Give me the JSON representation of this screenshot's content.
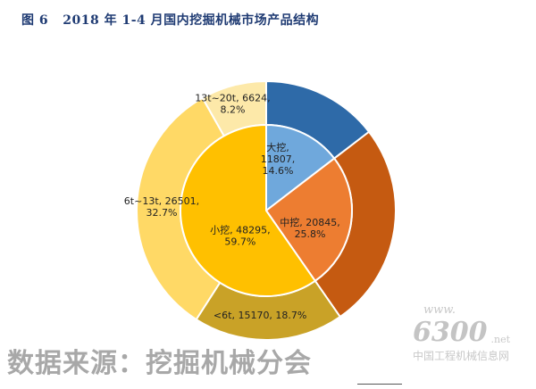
{
  "title": "图 6   2018 年 1-4 月国内挖掘机械市场产品结构",
  "watermark": "数据来源：挖掘机械分会",
  "logo": {
    "www": "www.",
    "num": "6300",
    "net": ".net",
    "cn": "中国工程机械信息网"
  },
  "chart_data": {
    "type": "pie",
    "title": "2018 年 1-4 月国内挖掘机械市场产品结构",
    "inner": [
      {
        "name": "大挖",
        "value": 11807,
        "percent": 14.6,
        "color": "#6fa8dc",
        "label": [
          "大挖,",
          "11807,",
          "14.6%"
        ]
      },
      {
        "name": "中挖",
        "value": 20845,
        "percent": 25.8,
        "color": "#ed7d31",
        "label": [
          "中挖, 20845,",
          "25.8%"
        ]
      },
      {
        "name": "小挖",
        "value": 48295,
        "percent": 59.7,
        "color": "#ffc000",
        "label": [
          "小挖, 48295,",
          "59.7%"
        ]
      }
    ],
    "outer": [
      {
        "name": "大挖",
        "value": 11807,
        "percent": 14.6,
        "color": "#2e6aa8",
        "label": []
      },
      {
        "name": "中挖",
        "value": 20845,
        "percent": 25.8,
        "color": "#c55a11",
        "label": []
      },
      {
        "name": "<6t",
        "value": 15170,
        "percent": 18.7,
        "color": "#c9a227",
        "label": [
          "<6t, 15170, 18.7%"
        ]
      },
      {
        "name": "6t~13t",
        "value": 26501,
        "percent": 32.7,
        "color": "#ffd966",
        "label": [
          "6t~13t, 26501,",
          "32.7%"
        ]
      },
      {
        "name": "13t~20t",
        "value": 6624,
        "percent": 8.2,
        "color": "#fde9a9",
        "label": [
          "13t~20t, 6624,",
          "8.2%"
        ]
      }
    ]
  }
}
